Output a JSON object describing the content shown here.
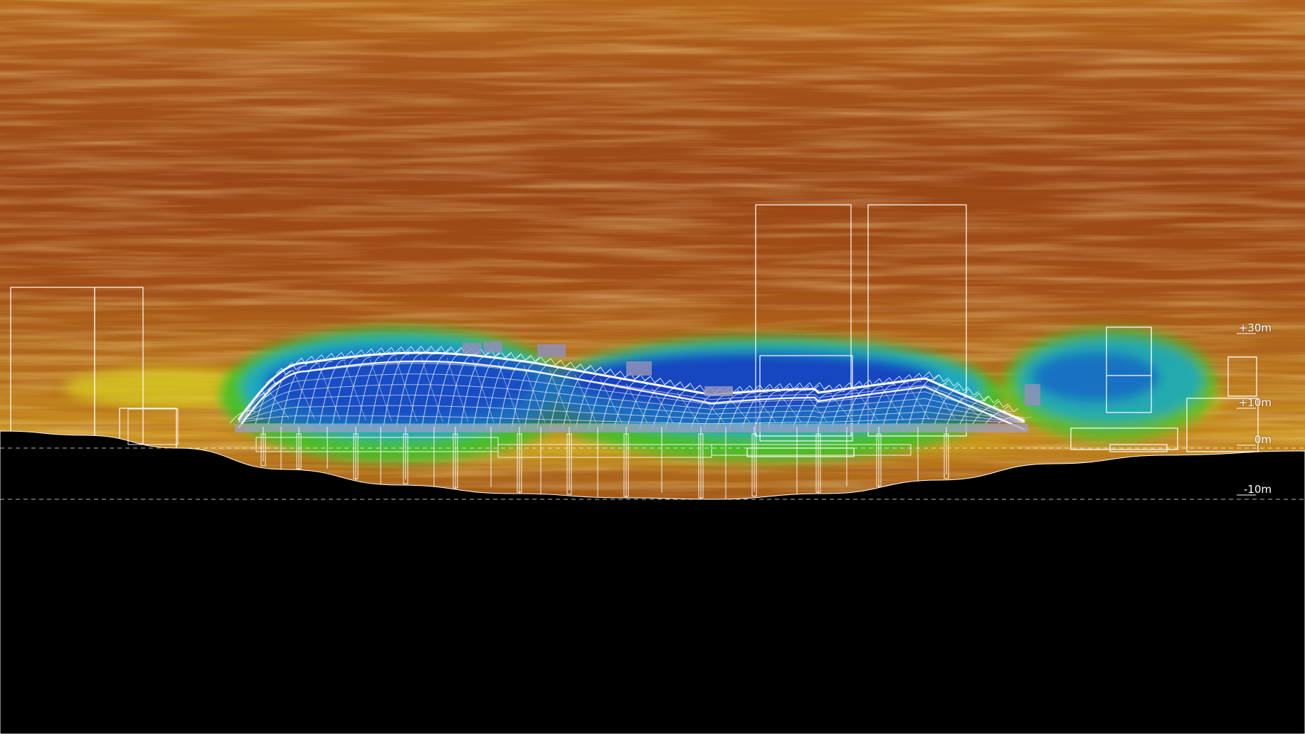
{
  "diagram": {
    "elevation_markers": [
      {
        "label": "+30m",
        "meters": 30
      },
      {
        "label": "+10m",
        "meters": 10
      },
      {
        "label": "0m",
        "meters": 0
      },
      {
        "label": "-10m",
        "meters": -10
      }
    ]
  },
  "colors": {
    "flow_high_dark": "#7a2410",
    "flow_high": "#b65a16",
    "flow_mid": "#d49a22",
    "flow_yellow": "#d8cf22",
    "flow_green": "#3cc028",
    "flow_cyan": "#1aa8c8",
    "flow_low": "#1530b8",
    "outline": "#ffffff",
    "ground": "#000000"
  }
}
